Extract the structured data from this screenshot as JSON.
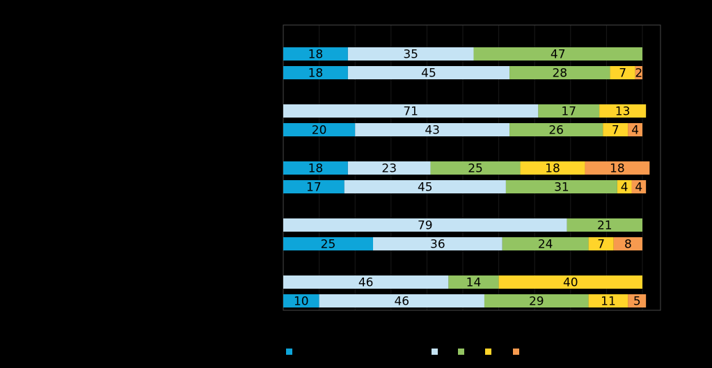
{
  "chart_data": {
    "type": "bar",
    "orientation": "horizontal",
    "stacked": true,
    "xlim": [
      0,
      100
    ],
    "grid": true,
    "legend_placement": "bottom",
    "colors": [
      "#0ea5d9",
      "#c5e3f4",
      "#93c462",
      "#ffd42a",
      "#f79a4f"
    ],
    "series": [
      {
        "values": [
          18,
          18,
          0,
          20,
          18,
          17,
          0,
          25,
          0,
          10
        ]
      },
      {
        "values": [
          35,
          45,
          71,
          43,
          23,
          45,
          79,
          36,
          46,
          46
        ]
      },
      {
        "values": [
          47,
          28,
          17,
          26,
          25,
          31,
          21,
          24,
          14,
          29
        ]
      },
      {
        "values": [
          0,
          7,
          13,
          7,
          18,
          4,
          0,
          7,
          40,
          11
        ]
      },
      {
        "values": [
          0,
          2,
          0,
          4,
          18,
          4,
          0,
          8,
          0,
          5
        ]
      }
    ]
  }
}
